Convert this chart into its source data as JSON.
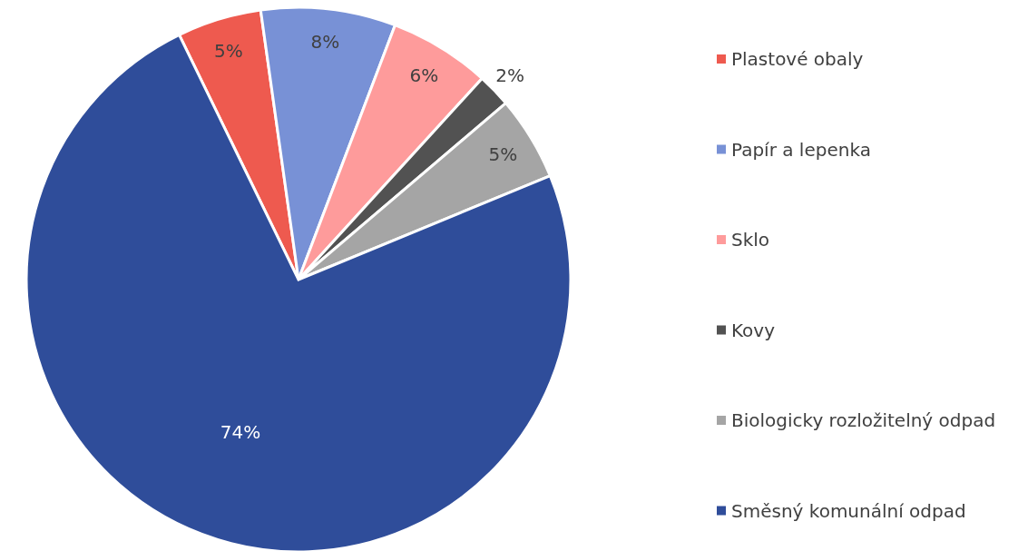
{
  "chart_data": {
    "type": "pie",
    "categories": [
      "Plastové obaly",
      "Papír a lepenka",
      "Sklo",
      "Kovy",
      "Biologicky rozložitelný odpad",
      "Směsný komunální odpad"
    ],
    "values": [
      5,
      8,
      6,
      2,
      5,
      74
    ],
    "colors": [
      "#ee5a4f",
      "#7891d6",
      "#fe9b9b",
      "#525252",
      "#a5a5a5",
      "#2f4d9a"
    ],
    "value_labels": [
      "5%",
      "8%",
      "6%",
      "2%",
      "5%",
      "74%"
    ],
    "legend": "right"
  }
}
